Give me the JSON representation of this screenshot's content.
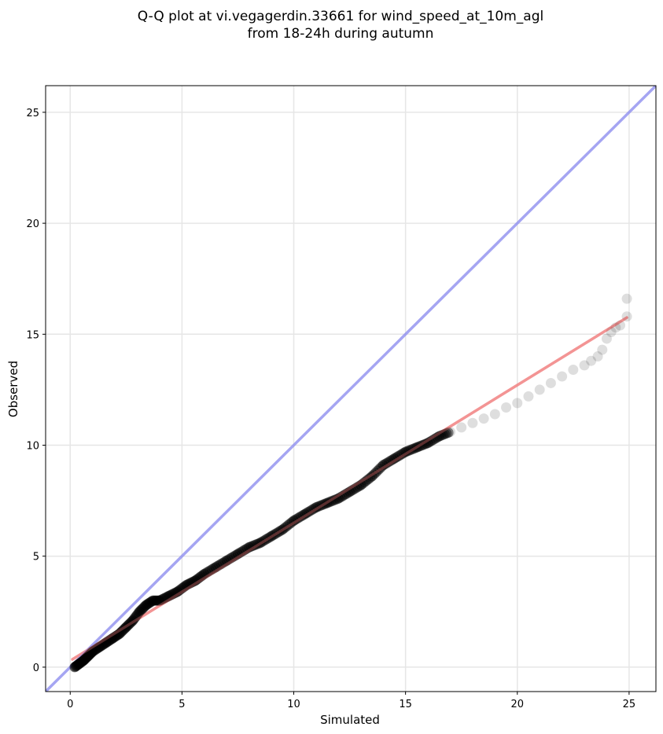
{
  "chart_data": {
    "type": "scatter",
    "title_line1": "Q-Q plot at vi.vegagerdin.33661 for wind_speed_at_10m_agl",
    "title_line2": "from 18-24h during autumn",
    "xlabel": "Simulated",
    "ylabel": "Observed",
    "xlim": [
      -1.1,
      26.2
    ],
    "ylim": [
      -1.1,
      26.2
    ],
    "xticks": [
      0,
      5,
      10,
      15,
      20,
      25
    ],
    "yticks": [
      0,
      5,
      10,
      15,
      20,
      25
    ],
    "xtick_labels": [
      "0",
      "5",
      "10",
      "15",
      "20",
      "25"
    ],
    "ytick_labels": [
      "0",
      "5",
      "10",
      "15",
      "20",
      "25"
    ],
    "grid": true,
    "series": [
      {
        "kind": "points",
        "color": "#000000",
        "x": [
          0.2,
          0.4,
          0.6,
          0.8,
          1.0,
          1.3,
          1.6,
          1.9,
          2.2,
          2.5,
          2.8,
          3.1,
          3.4,
          3.7,
          4.0,
          4.4,
          4.8,
          5.2,
          5.6,
          6.0,
          6.5,
          7.0,
          7.5,
          8.0,
          8.5,
          9.0,
          9.5,
          10.0,
          10.5,
          11.0,
          11.5,
          12.0,
          12.5,
          13.0,
          13.5,
          14.0,
          14.5,
          15.0,
          15.5,
          16.0,
          16.5,
          17.0,
          17.5,
          18.0,
          18.5,
          19.0,
          19.5,
          20.0,
          20.5,
          21.0,
          21.5,
          22.0,
          22.5,
          23.0,
          23.3,
          23.6,
          23.8,
          24.0,
          24.2,
          24.4,
          24.6,
          24.9,
          24.9
        ],
        "y": [
          0.0,
          0.15,
          0.3,
          0.5,
          0.7,
          0.9,
          1.1,
          1.3,
          1.5,
          1.8,
          2.1,
          2.5,
          2.8,
          3.0,
          3.0,
          3.2,
          3.4,
          3.7,
          3.9,
          4.2,
          4.5,
          4.8,
          5.1,
          5.4,
          5.6,
          5.9,
          6.2,
          6.6,
          6.9,
          7.2,
          7.4,
          7.6,
          7.9,
          8.2,
          8.6,
          9.1,
          9.4,
          9.7,
          9.9,
          10.1,
          10.4,
          10.6,
          10.8,
          11.0,
          11.2,
          11.4,
          11.7,
          11.9,
          12.2,
          12.5,
          12.8,
          13.1,
          13.4,
          13.6,
          13.8,
          14.0,
          14.3,
          14.8,
          15.1,
          15.3,
          15.4,
          15.8,
          16.6
        ]
      },
      {
        "kind": "line",
        "color": "#f07a7a",
        "x": [
          0.1,
          24.9
        ],
        "y": [
          0.35,
          15.75
        ]
      },
      {
        "kind": "line",
        "color": "#8f8fef",
        "x": [
          -1.1,
          26.2
        ],
        "y": [
          -1.1,
          26.2
        ]
      }
    ]
  }
}
